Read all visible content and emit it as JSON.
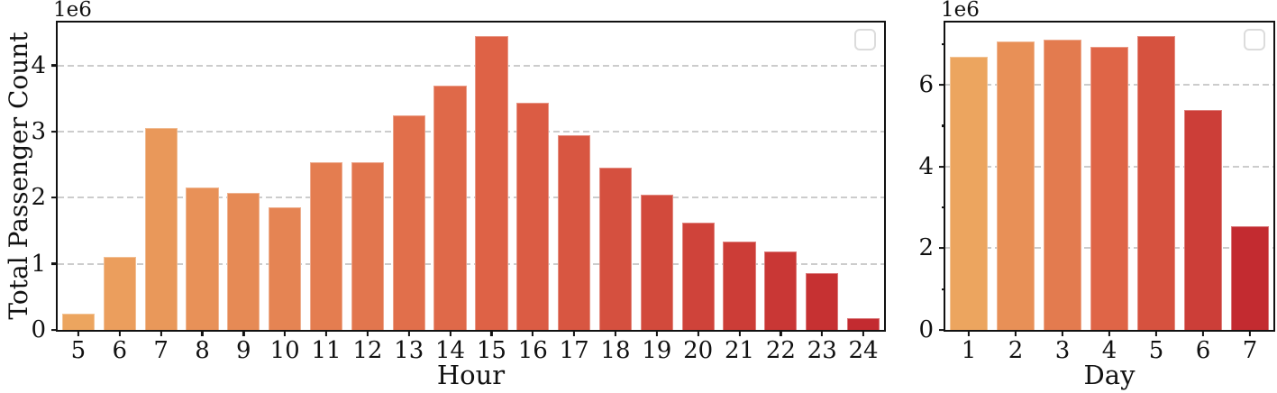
{
  "figure": {
    "background": "#ffffff",
    "text_color": "#111111",
    "spine_color": "#111111",
    "grid_color": "#cccccc"
  },
  "chart_data": [
    {
      "type": "bar",
      "title": "",
      "xlabel": "Hour",
      "ylabel": "Total Passenger Count",
      "scale_offset_label": "1e6",
      "categories": [
        "5",
        "6",
        "7",
        "8",
        "9",
        "10",
        "11",
        "12",
        "13",
        "14",
        "15",
        "16",
        "17",
        "18",
        "19",
        "20",
        "21",
        "22",
        "23",
        "24"
      ],
      "values": [
        250000,
        1100000,
        3050000,
        2160000,
        2070000,
        1860000,
        2540000,
        2530000,
        3250000,
        3700000,
        4450000,
        3440000,
        2940000,
        2460000,
        2040000,
        1620000,
        1340000,
        1190000,
        860000,
        180000
      ],
      "ylim": [
        0,
        4650000
      ],
      "ytick_values": [
        0,
        1000000,
        2000000,
        3000000,
        4000000
      ],
      "ytick_labels": [
        "0",
        "1",
        "2",
        "3",
        "4"
      ],
      "minor_ytick_values": [],
      "grid": "dashed-horizontal",
      "legend": "empty-box",
      "bar_colors": [
        "#ECA55F",
        "#EB9E5D",
        "#E9985A",
        "#E89158",
        "#E68A55",
        "#E58453",
        "#E47D50",
        "#E2764E",
        "#E16F4B",
        "#DF6949",
        "#DE6246",
        "#DB5C44",
        "#D85641",
        "#D5503F",
        "#D24A3C",
        "#CF433A",
        "#CC3D37",
        "#C93735",
        "#C63132",
        "#C32B30"
      ]
    },
    {
      "type": "bar",
      "title": "",
      "xlabel": "Day",
      "ylabel": "",
      "scale_offset_label": "1e6",
      "categories": [
        "1",
        "2",
        "3",
        "4",
        "5",
        "6",
        "7"
      ],
      "values": [
        6700000,
        7070000,
        7110000,
        6930000,
        7210000,
        5380000,
        2540000
      ],
      "ylim": [
        0,
        7530000
      ],
      "ytick_values": [
        0,
        2000000,
        4000000,
        6000000
      ],
      "ytick_labels": [
        "0",
        "2",
        "4",
        "6"
      ],
      "minor_ytick_values": [
        1000000,
        3000000,
        5000000,
        7000000
      ],
      "grid": "dashed-horizontal",
      "legend": "empty-box",
      "bar_colors": [
        "#ECA55F",
        "#E89057",
        "#E37B4F",
        "#DF6547",
        "#D6523F",
        "#CC3E38",
        "#C32B30"
      ]
    }
  ]
}
